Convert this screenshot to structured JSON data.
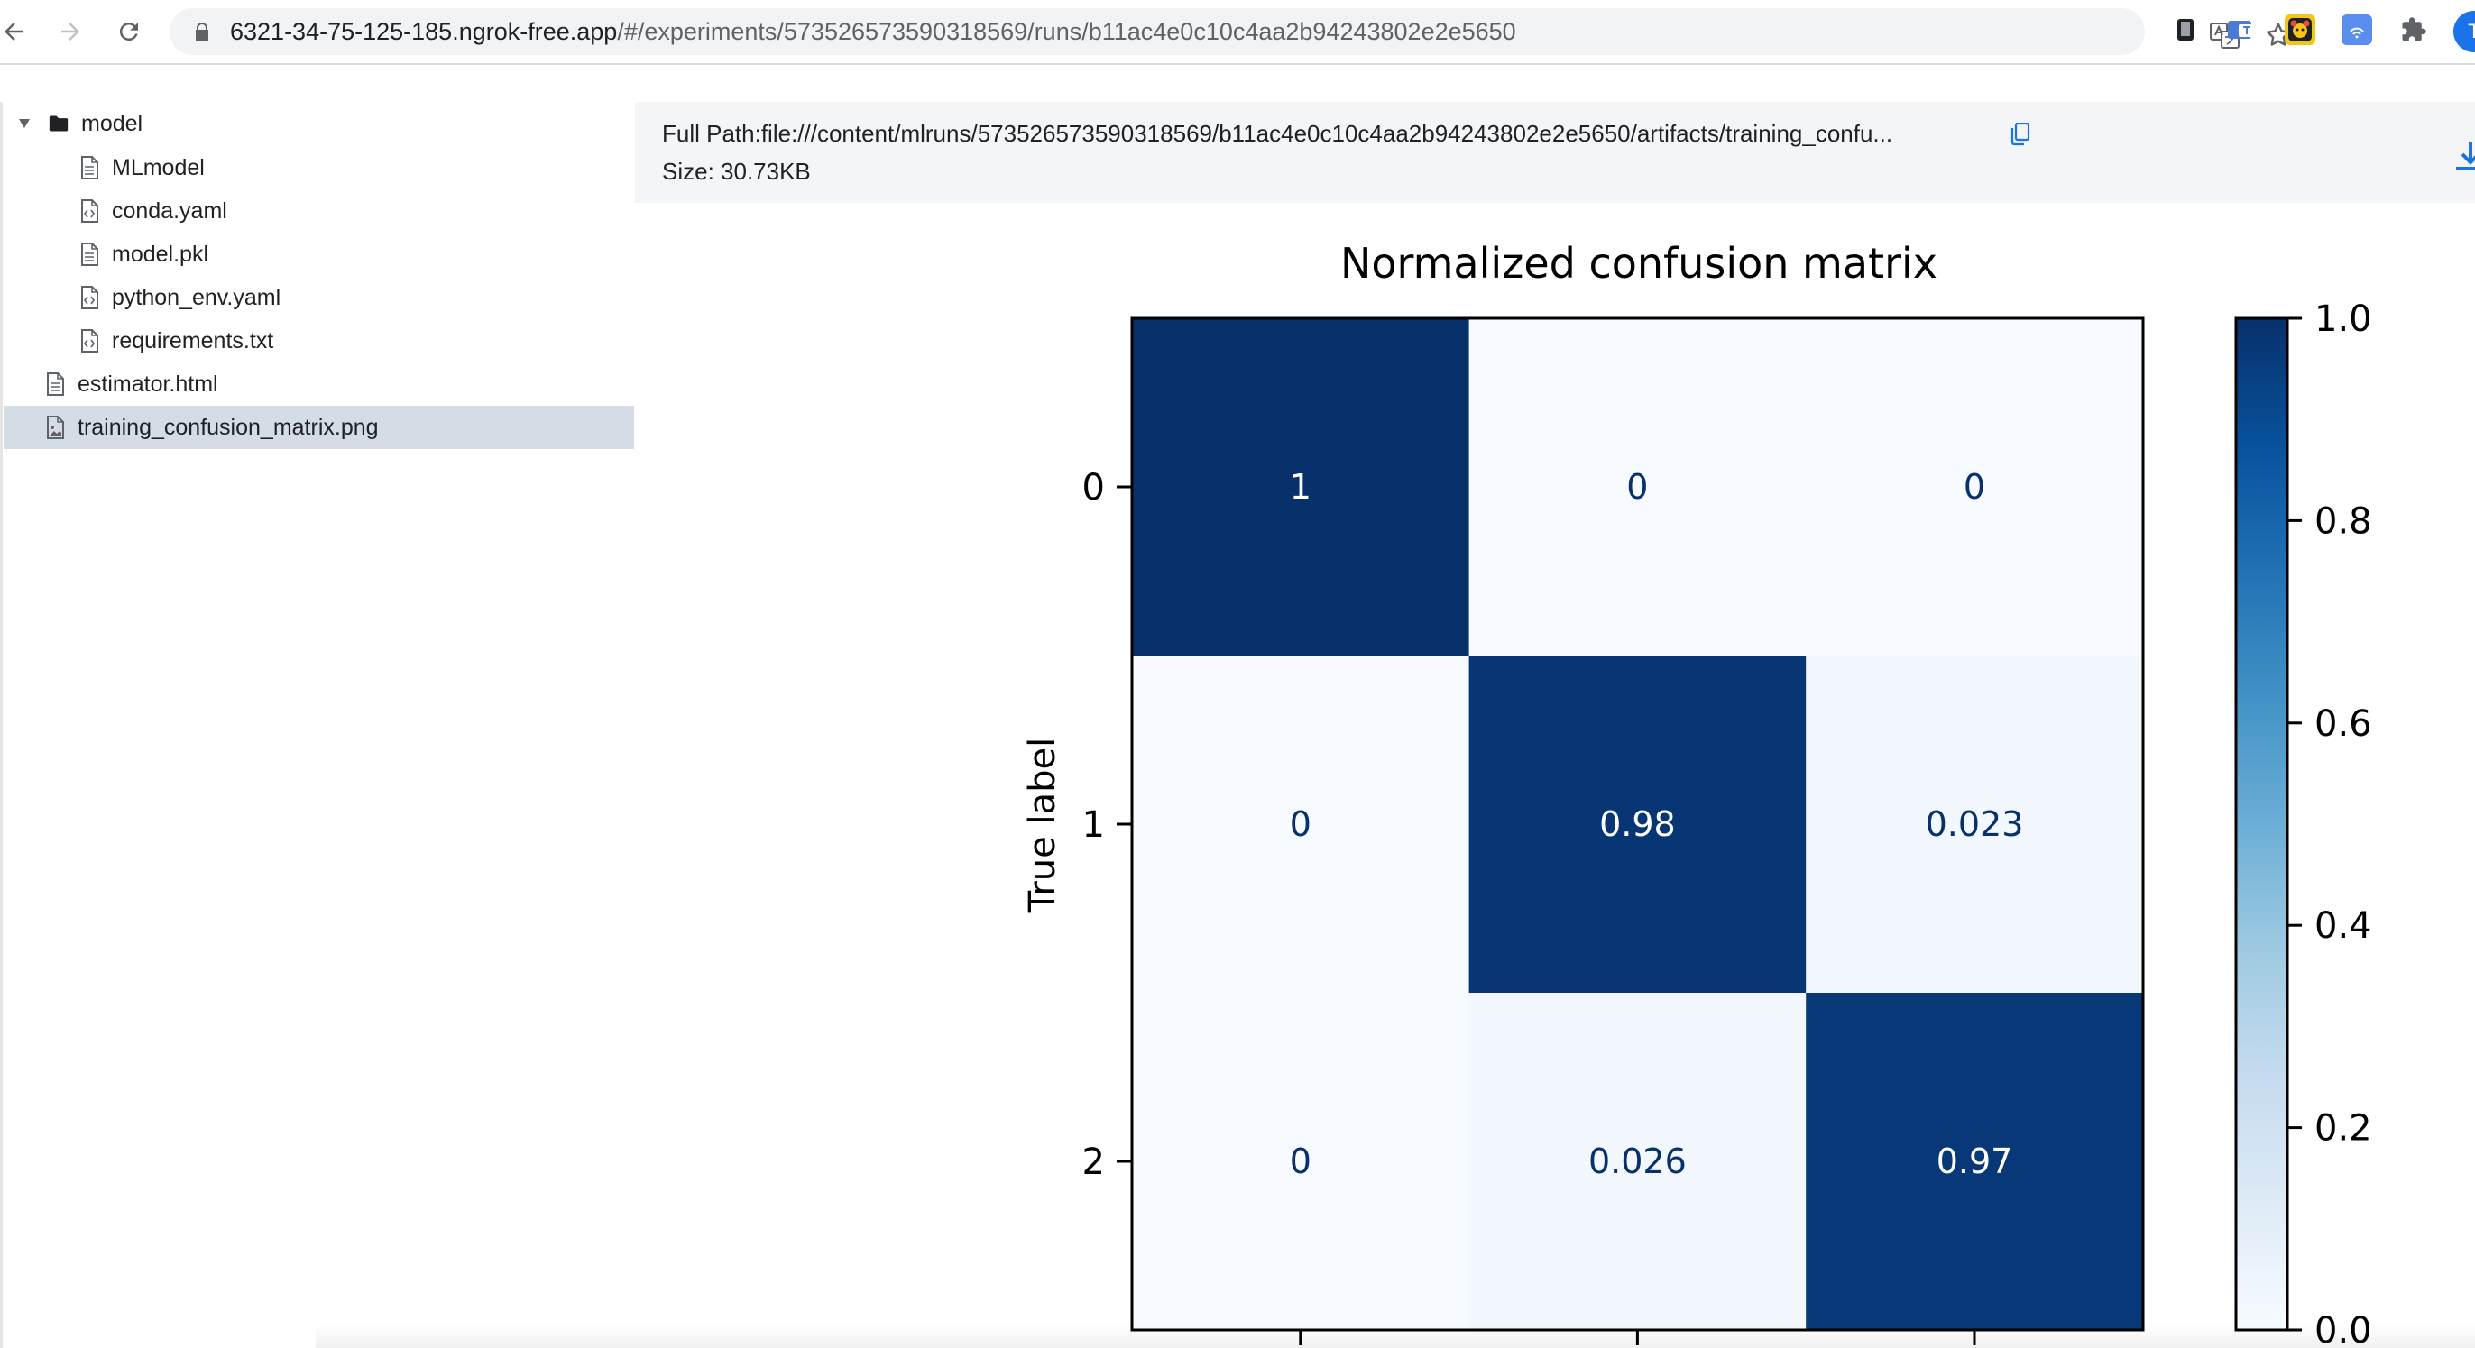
{
  "browser": {
    "url_host": "6321-34-75-125-185.ngrok-free.app",
    "url_path": "/#/experiments/573526573590318569/runs/b11ac4e0c10c4aa2b94243802e2e5650",
    "avatar_letter": "T"
  },
  "tree": {
    "items": [
      {
        "label": "model",
        "type": "folder",
        "expanded": true
      },
      {
        "label": "MLmodel",
        "type": "file"
      },
      {
        "label": "conda.yaml",
        "type": "code-file"
      },
      {
        "label": "model.pkl",
        "type": "file"
      },
      {
        "label": "python_env.yaml",
        "type": "code-file"
      },
      {
        "label": "requirements.txt",
        "type": "code-file"
      },
      {
        "label": "estimator.html",
        "type": "file"
      },
      {
        "label": "training_confusion_matrix.png",
        "type": "image-file",
        "selected": true
      }
    ]
  },
  "artifact": {
    "full_path": "Full Path:file:///content/mlruns/573526573590318569/b11ac4e0c10c4aa2b94243802e2e5650/artifacts/training_confu...",
    "size": "Size: 30.73KB"
  },
  "chart_data": {
    "type": "heatmap",
    "title": "Normalized confusion matrix",
    "ylabel": "True label",
    "row_labels": [
      "0",
      "1",
      "2"
    ],
    "values": [
      [
        1,
        0,
        0
      ],
      [
        0,
        0.98,
        0.023
      ],
      [
        0,
        0.026,
        0.97
      ]
    ],
    "cell_text": [
      [
        "1",
        "0",
        "0"
      ],
      [
        "0",
        "0.98",
        "0.023"
      ],
      [
        "0",
        "0.026",
        "0.97"
      ]
    ],
    "colorbar": {
      "range": [
        0,
        1.0
      ],
      "ticks": [
        "0.0",
        "0.2",
        "0.4",
        "0.6",
        "0.8",
        "1.0"
      ]
    },
    "colormap": "Blues",
    "colors": {
      "low": "#f7fbff",
      "high": "#08306b",
      "text_on_dark": "#ffffff",
      "text_on_light": "#08306b"
    }
  }
}
